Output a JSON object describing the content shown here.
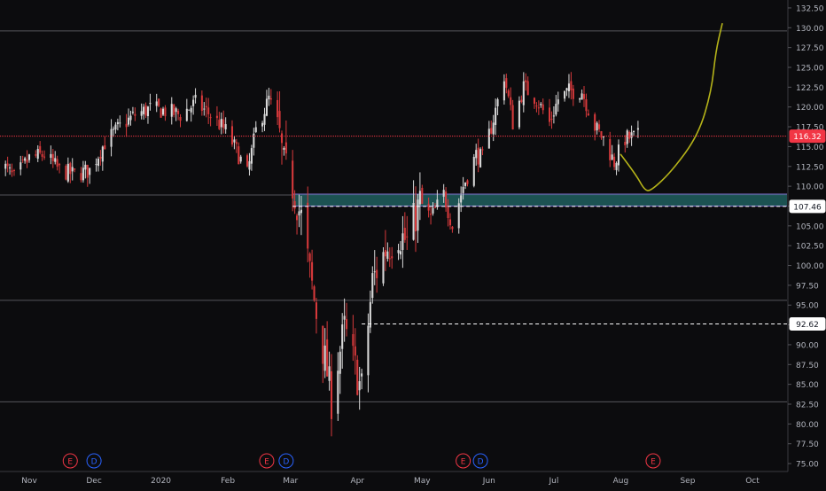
{
  "symbol_title": "",
  "chart_data": {
    "type": "candlestick",
    "title": "",
    "y_axis": {
      "range": [
        74,
        133.5
      ],
      "ticks": [
        "75.00",
        "77.50",
        "80.00",
        "82.50",
        "85.00",
        "87.50",
        "90.00",
        "92.50",
        "95.00",
        "97.50",
        "100.00",
        "102.50",
        "105.00",
        "107.50",
        "110.00",
        "112.50",
        "115.00",
        "117.50",
        "120.00",
        "122.50",
        "125.00",
        "127.50",
        "130.00",
        "132.50"
      ]
    },
    "x_axis": {
      "labels": [
        "Nov",
        "Dec",
        "2020",
        "Feb",
        "Mar",
        "Apr",
        "May",
        "Jun",
        "Jul",
        "Aug",
        "Sep",
        "Oct"
      ],
      "label_dates": [
        "2019-11-01",
        "2019-12-01",
        "2020-01-01",
        "2020-02-01",
        "2020-03-01",
        "2020-04-01",
        "2020-05-01",
        "2020-06-01",
        "2020-07-01",
        "2020-08-01",
        "2020-09-01",
        "2020-10-01"
      ]
    },
    "price_labels": [
      {
        "value": 116.32,
        "text": "116.32",
        "color": "#f23645",
        "style": "solid"
      },
      {
        "value": 107.46,
        "text": "107.46",
        "color": "#ffffff",
        "style": "dashed"
      },
      {
        "value": 92.62,
        "text": "92.62",
        "color": "#ffffff",
        "style": "dashed"
      }
    ],
    "horizontal_lines": [
      129.6,
      108.9,
      95.6,
      82.8
    ],
    "zone": {
      "top": 109.0,
      "bottom": 107.5,
      "color": "#1e5a5a",
      "edge_color": "#7b6cc8"
    },
    "events": [
      {
        "date": "2019-11-20",
        "label": "E",
        "color": "#f23645"
      },
      {
        "date": "2019-12-01",
        "label": "D",
        "color": "#2962ff"
      },
      {
        "date": "2020-02-19",
        "label": "E",
        "color": "#f23645"
      },
      {
        "date": "2020-02-28",
        "label": "D",
        "color": "#2962ff"
      },
      {
        "date": "2020-05-20",
        "label": "E",
        "color": "#f23645"
      },
      {
        "date": "2020-05-28",
        "label": "D",
        "color": "#2962ff"
      },
      {
        "date": "2020-08-16",
        "label": "E",
        "color": "#f23645"
      }
    ],
    "projection": {
      "color": "#b5b319",
      "points": [
        [
          "2020-08-01",
          114.0
        ],
        [
          "2020-08-08",
          111.5
        ],
        [
          "2020-08-12",
          109.5
        ],
        [
          "2020-08-15",
          109.4
        ],
        [
          "2020-08-25",
          112.0
        ],
        [
          "2020-09-06",
          116.5
        ],
        [
          "2020-09-12",
          122.0
        ],
        [
          "2020-09-14",
          127.0
        ],
        [
          "2020-09-17",
          130.5
        ]
      ]
    },
    "anchors": [
      [
        "2019-10-18",
        113.3
      ],
      [
        "2019-10-25",
        111.0
      ],
      [
        "2019-11-01",
        113.5
      ],
      [
        "2019-11-08",
        114.0
      ],
      [
        "2019-11-15",
        112.0
      ],
      [
        "2019-11-22",
        111.5
      ],
      [
        "2019-11-29",
        112.0
      ],
      [
        "2019-12-06",
        115.5
      ],
      [
        "2019-12-13",
        117.5
      ],
      [
        "2019-12-20",
        119.0
      ],
      [
        "2019-12-27",
        119.8
      ],
      [
        "2020-01-03",
        119.5
      ],
      [
        "2020-01-10",
        119.0
      ],
      [
        "2020-01-17",
        120.5
      ],
      [
        "2020-01-24",
        119.0
      ],
      [
        "2020-01-31",
        117.0
      ],
      [
        "2020-02-05",
        114.5
      ],
      [
        "2020-02-10",
        111.5
      ],
      [
        "2020-02-14",
        117.0
      ],
      [
        "2020-02-20",
        121.0
      ],
      [
        "2020-02-24",
        118.0
      ],
      [
        "2020-02-27",
        112.5
      ],
      [
        "2020-03-02",
        110.0
      ],
      [
        "2020-03-06",
        106.0
      ],
      [
        "2020-03-10",
        99.0
      ],
      [
        "2020-03-13",
        94.0
      ],
      [
        "2020-03-18",
        86.5
      ],
      [
        "2020-03-20",
        83.0
      ],
      [
        "2020-03-23",
        88.0
      ],
      [
        "2020-03-26",
        92.0
      ],
      [
        "2020-03-30",
        88.0
      ],
      [
        "2020-04-02",
        85.0
      ],
      [
        "2020-04-03",
        84.5
      ],
      [
        "2020-04-08",
        98.0
      ],
      [
        "2020-04-14",
        102.0
      ],
      [
        "2020-04-20",
        104.0
      ],
      [
        "2020-04-24",
        103.0
      ],
      [
        "2020-04-30",
        108.0
      ],
      [
        "2020-05-05",
        106.0
      ],
      [
        "2020-05-11",
        109.0
      ],
      [
        "2020-05-15",
        105.0
      ],
      [
        "2020-05-20",
        110.0
      ],
      [
        "2020-05-26",
        114.0
      ],
      [
        "2020-05-29",
        113.5
      ],
      [
        "2020-06-03",
        118.5
      ],
      [
        "2020-06-08",
        124.0
      ],
      [
        "2020-06-12",
        118.0
      ],
      [
        "2020-06-17",
        122.5
      ],
      [
        "2020-06-23",
        121.0
      ],
      [
        "2020-06-29",
        118.0
      ],
      [
        "2020-07-03",
        121.0
      ],
      [
        "2020-07-08",
        122.0
      ],
      [
        "2020-07-14",
        122.0
      ],
      [
        "2020-07-20",
        117.5
      ],
      [
        "2020-07-24",
        116.0
      ],
      [
        "2020-07-29",
        113.0
      ],
      [
        "2020-08-03",
        116.0
      ],
      [
        "2020-08-09",
        116.3
      ]
    ],
    "colors": {
      "up": "#d9d9d9",
      "down": "#d7393b",
      "grid": "#2f2f33",
      "axis_text": "#b2b5be",
      "background": "#0c0c0e"
    }
  }
}
